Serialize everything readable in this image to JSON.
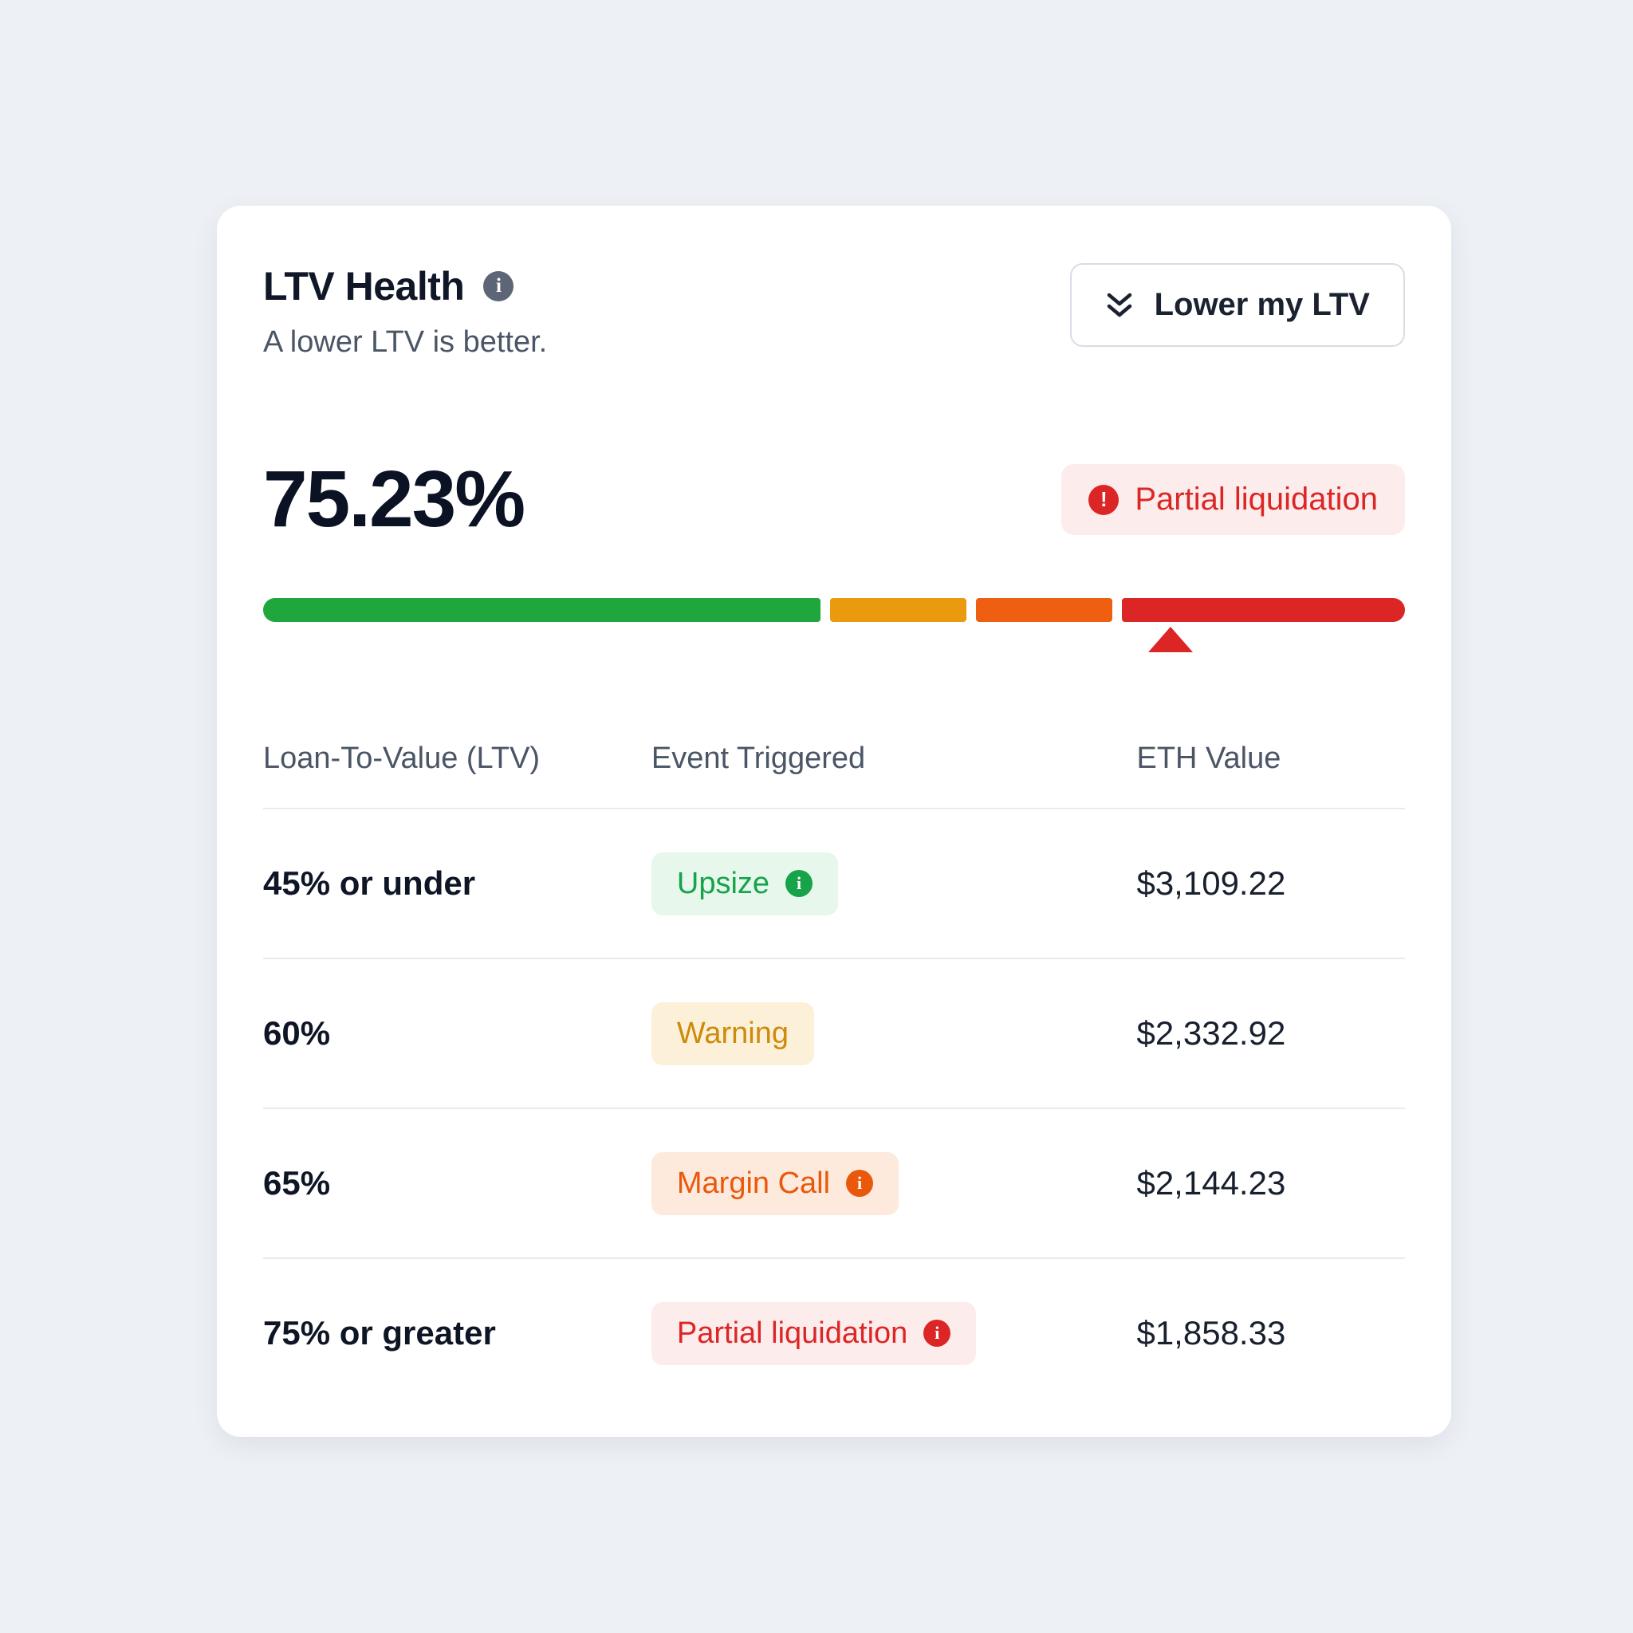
{
  "colors": {
    "page_bg": "#edf0f5",
    "card_bg": "#ffffff",
    "green": "#1fa63c",
    "amber": "#ea9a0e",
    "orange": "#ee5f12",
    "red": "#dc2626"
  },
  "icons": {
    "info_glyph": "i",
    "alert_glyph": "!"
  },
  "card": {
    "title": "LTV Health",
    "subtitle": "A lower LTV is better.",
    "button_label": "Lower my LTV",
    "ltv_value": "75.23%",
    "status_badge": "Partial liquidation"
  },
  "meter": {
    "segments": [
      {
        "name": "safe-zone",
        "color": "#1fa63c",
        "flex": 695
      },
      {
        "name": "warning-zone",
        "color": "#ea9a0e",
        "flex": 170
      },
      {
        "name": "margin-call-zone",
        "color": "#ee5f12",
        "flex": 170
      },
      {
        "name": "partial-liquidation-zone",
        "color": "#dc2626",
        "flex": 353
      }
    ],
    "pointer_percent": 79.5
  },
  "table": {
    "headers": [
      "Loan-To-Value (LTV)",
      "Event Triggered",
      "ETH Value"
    ],
    "rows": [
      {
        "ltv": "45% or under",
        "event": "Upsize",
        "tone": "green",
        "has_icon": true,
        "eth_value": "$3,109.22"
      },
      {
        "ltv": "60%",
        "event": "Warning",
        "tone": "amber",
        "has_icon": false,
        "eth_value": "$2,332.92"
      },
      {
        "ltv": "65%",
        "event": "Margin Call",
        "tone": "orange",
        "has_icon": true,
        "eth_value": "$2,144.23"
      },
      {
        "ltv": "75% or greater",
        "event": "Partial liquidation",
        "tone": "red",
        "has_icon": true,
        "eth_value": "$1,858.33"
      }
    ]
  }
}
